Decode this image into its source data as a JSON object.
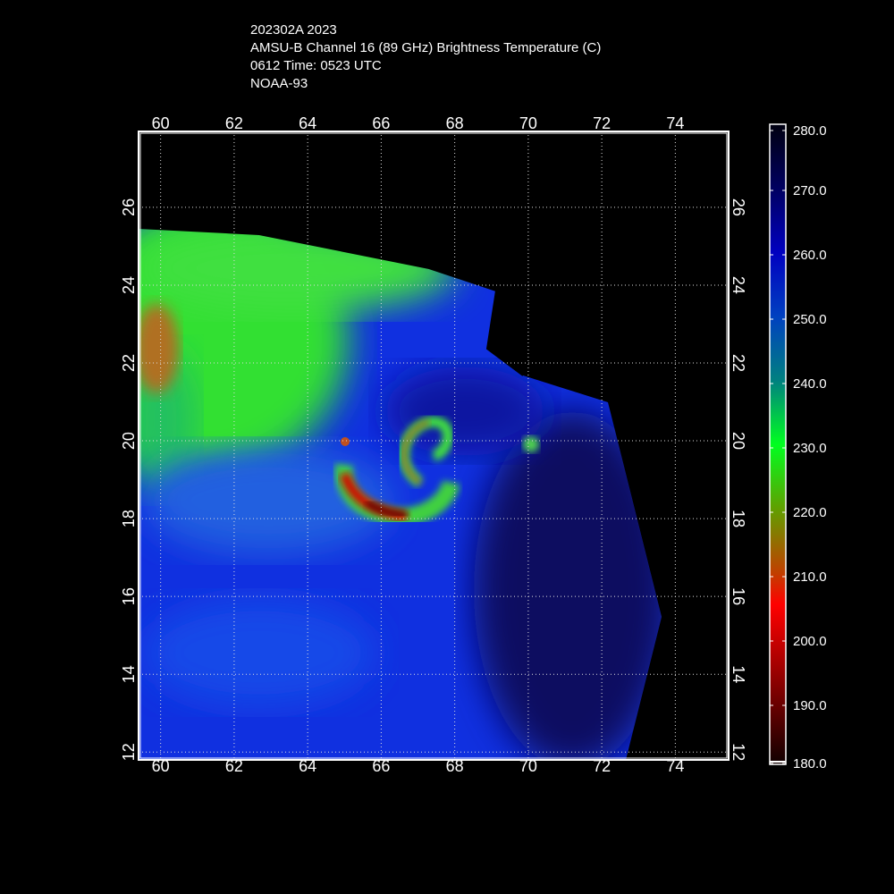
{
  "title": {
    "line1": "202302A 2023",
    "line2": "AMSU-B Channel 16 (89 GHz) Brightness Temperature (C)",
    "line3": "0612 Time: 0523 UTC",
    "line4": "NOAA-93"
  },
  "map": {
    "lon_ticks": [
      "60",
      "62",
      "64",
      "66",
      "68",
      "70",
      "72",
      "74"
    ],
    "lat_ticks": [
      "26",
      "24",
      "22",
      "20",
      "18",
      "16",
      "14",
      "12"
    ],
    "lon_range": [
      59.4,
      75.45
    ],
    "lat_range": [
      11.8,
      27.95
    ],
    "grid": true,
    "storm_center": {
      "lon": 67.2,
      "lat": 19.5
    }
  },
  "colorbar": {
    "labels": [
      "280.0",
      "270.0",
      "260.0",
      "250.0",
      "240.0",
      "230.0",
      "220.0",
      "210.0",
      "200.0",
      "190.0",
      "180.0"
    ],
    "range": [
      180,
      280
    ],
    "colors": [
      "#000010",
      "#000080",
      "#0000ff",
      "#008080",
      "#00ff20",
      "#808000",
      "#ff0000",
      "#800000",
      "#100000"
    ]
  }
}
